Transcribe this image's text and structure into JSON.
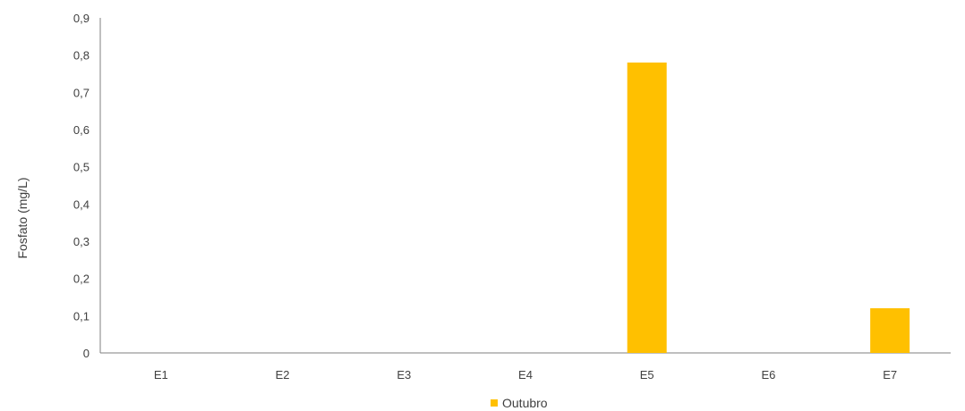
{
  "chart_data": {
    "type": "bar",
    "title": "",
    "xlabel": "",
    "ylabel": "Fosfato (mg/L)",
    "categories": [
      "E1",
      "E2",
      "E3",
      "E4",
      "E5",
      "E6",
      "E7"
    ],
    "series": [
      {
        "name": "Outubro",
        "color": "#FFC000",
        "values": [
          0,
          0,
          0,
          0,
          0.78,
          0,
          0.12
        ]
      }
    ],
    "ylim": [
      0,
      0.9
    ],
    "yticks": [
      "0",
      "0,1",
      "0,2",
      "0,3",
      "0,4",
      "0,5",
      "0,6",
      "0,7",
      "0,8",
      "0,9"
    ],
    "grid": false,
    "legend_position": "bottom"
  }
}
